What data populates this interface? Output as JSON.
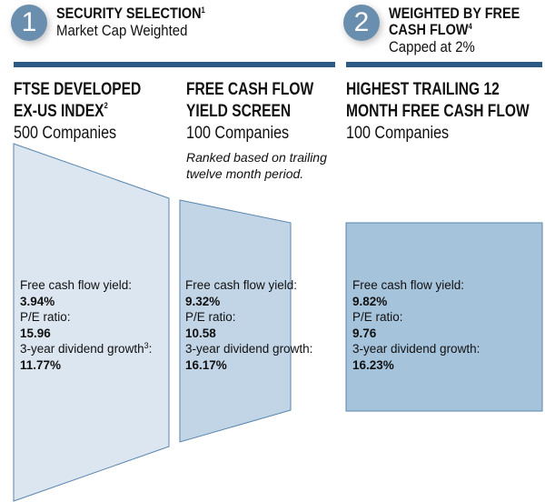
{
  "steps": [
    {
      "number": "1",
      "title": "SECURITY SELECTION",
      "title_sup": "1",
      "subtitle": "Market Cap Weighted"
    },
    {
      "number": "2",
      "title_line1": "WEIGHTED BY FREE",
      "title_line2": "CASH FLOW",
      "title_sup": "4",
      "subtitle": "Capped at 2%"
    }
  ],
  "columns": [
    {
      "title_line1": "FTSE DEVELOPED",
      "title_line2": "EX-US INDEX",
      "title_sup": "2",
      "count": "500 Companies",
      "stats": {
        "fcf_label": "Free cash flow yield:",
        "fcf": "3.94%",
        "pe_label": "P/E ratio:",
        "pe": "15.96",
        "div_label": "3-year dividend growth",
        "div_sup": "3",
        "div_suffix": ":",
        "div": "11.77%"
      }
    },
    {
      "title_line1": "FREE CASH FLOW",
      "title_line2": "YIELD SCREEN",
      "count": "100 Companies",
      "note_line1": "Ranked based on trailing",
      "note_line2": "twelve month period.",
      "stats": {
        "fcf_label": "Free cash flow yield:",
        "fcf": "9.32%",
        "pe_label": "P/E ratio:",
        "pe": "10.58",
        "div_label": "3-year dividend growth:",
        "div": "16.17%"
      }
    },
    {
      "title_line1": "HIGHEST TRAILING 12",
      "title_line2": "MONTH FREE CASH FLOW",
      "count": "100 Companies",
      "stats": {
        "fcf_label": "Free cash flow yield:",
        "fcf": "9.82%",
        "pe_label": "P/E ratio:",
        "pe": "9.76",
        "div_label": "3-year dividend growth:",
        "div": "16.23%"
      }
    }
  ],
  "colors": {
    "bar": "#2c5a84",
    "circle": "#6a8fae",
    "shape1": "#dce6f0",
    "shape2": "#c2d5e6",
    "shape3": "#a6c3dc",
    "outline": "#5a86ad"
  }
}
